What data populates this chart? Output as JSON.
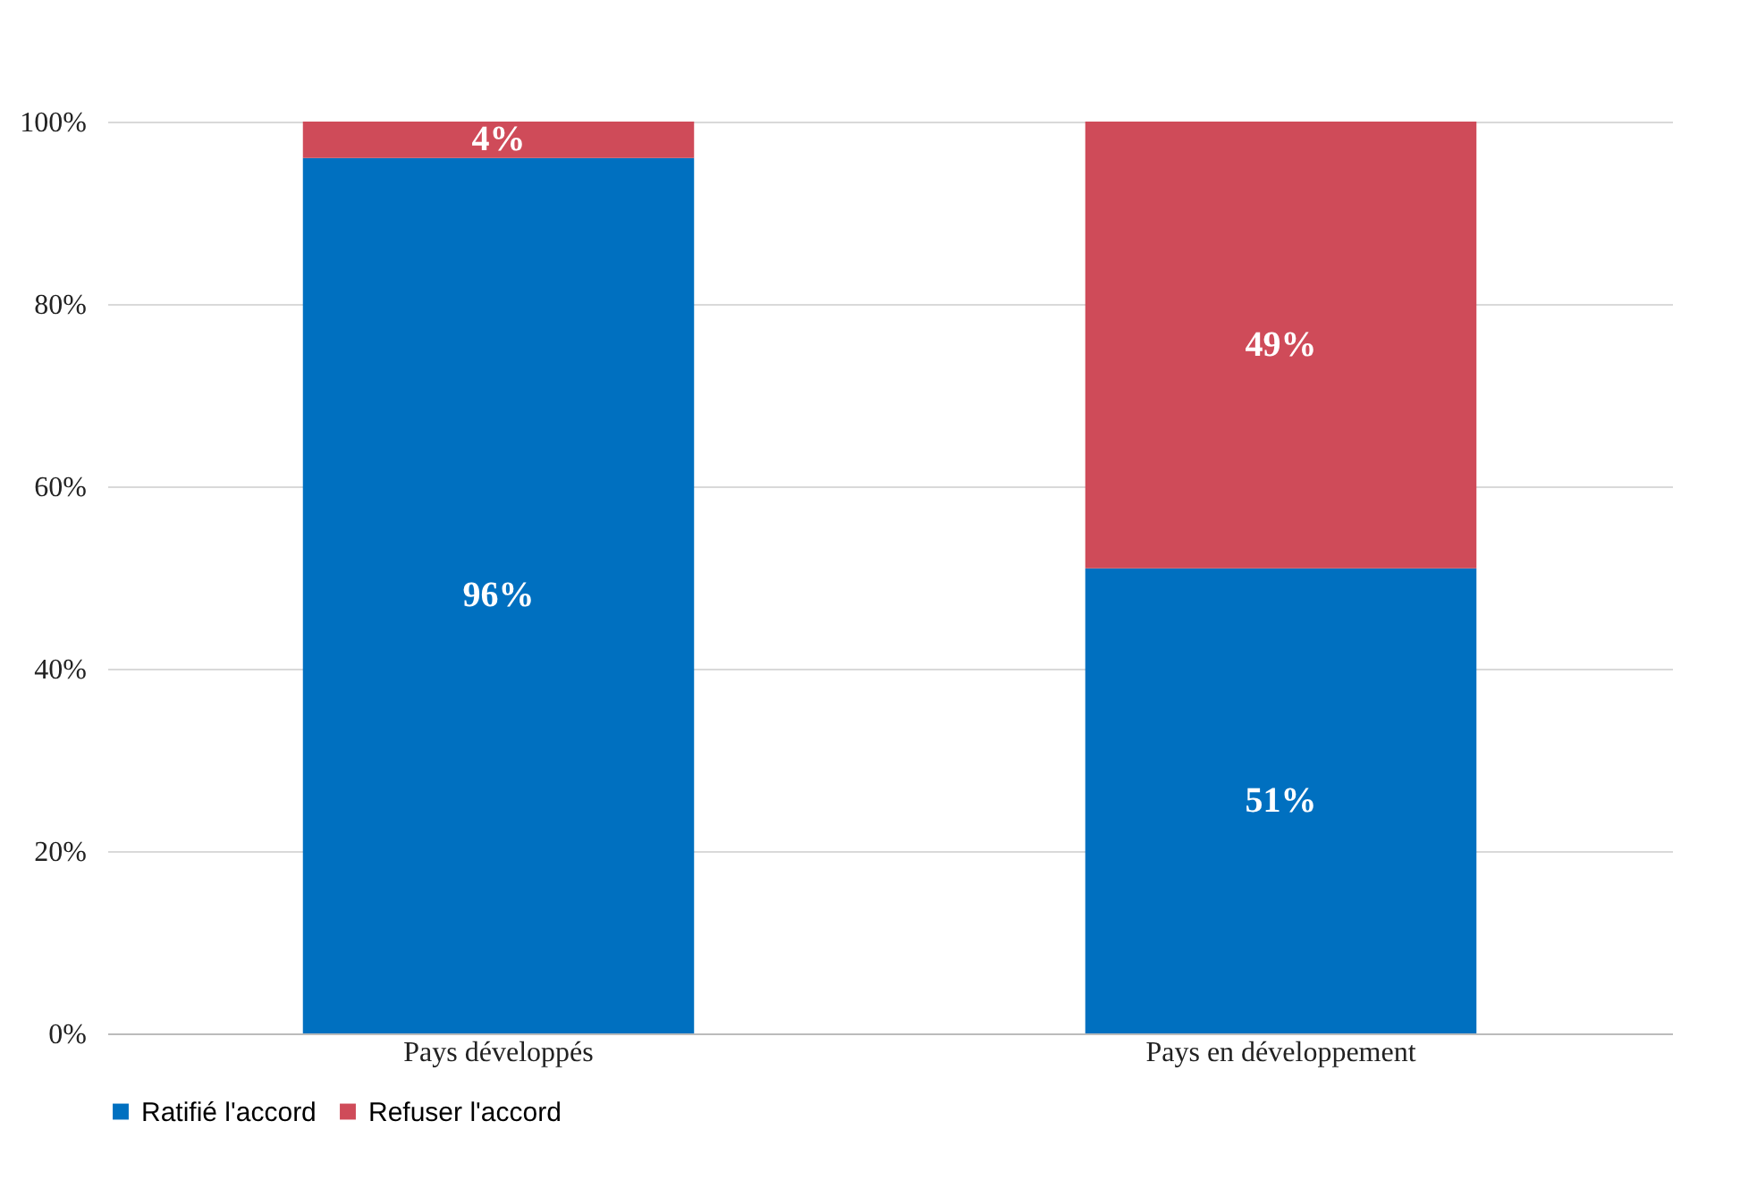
{
  "chart_data": {
    "type": "bar",
    "stacked": true,
    "categories": [
      "Pays développés",
      "Pays en développement"
    ],
    "series": [
      {
        "name": "Ratifié l'accord",
        "color": "#0070c0",
        "values": [
          96,
          51
        ],
        "value_labels": [
          "96%",
          "51%"
        ]
      },
      {
        "name": "Refuser l'accord",
        "color": "#cf4b59",
        "values": [
          4,
          49
        ],
        "value_labels": [
          "4%",
          "49%"
        ]
      }
    ],
    "ylim": [
      0,
      100
    ],
    "yticks": [
      {
        "value": 0,
        "label": "0%"
      },
      {
        "value": 20,
        "label": "20%"
      },
      {
        "value": 40,
        "label": "40%"
      },
      {
        "value": 60,
        "label": "60%"
      },
      {
        "value": 80,
        "label": "80%"
      },
      {
        "value": 100,
        "label": "100%"
      }
    ],
    "grid": "y",
    "legend": "bottom"
  }
}
